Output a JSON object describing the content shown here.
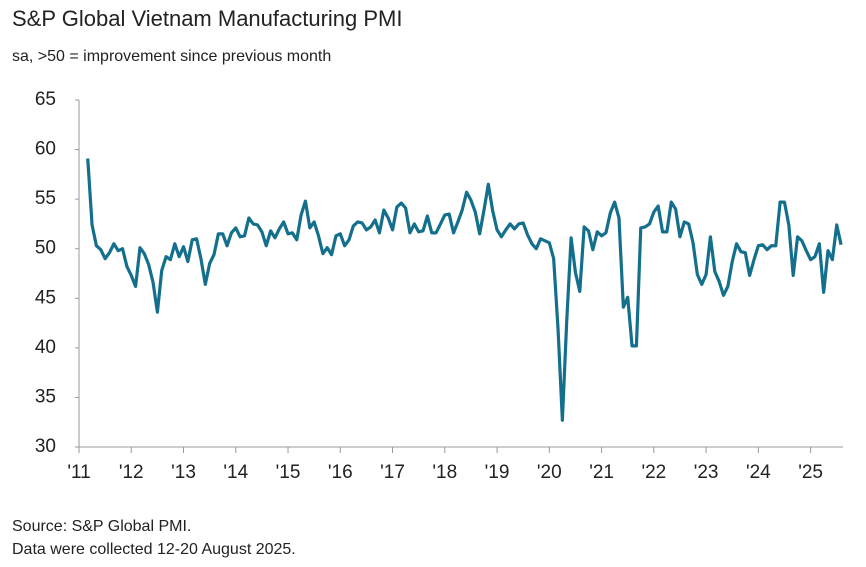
{
  "chart_data": {
    "type": "line",
    "title": "S&P Global Vietnam Manufacturing PMI",
    "subtitle": "sa, >50 = improvement since previous month",
    "source": "Source: S&P Global PMI.",
    "note": "Data were collected 12-20 August 2025.",
    "x": [
      2011.167,
      2011.25,
      2011.333,
      2011.417,
      2011.5,
      2011.583,
      2011.667,
      2011.75,
      2011.833,
      2011.917,
      2012,
      2012.083,
      2012.167,
      2012.25,
      2012.333,
      2012.417,
      2012.5,
      2012.583,
      2012.667,
      2012.75,
      2012.833,
      2012.917,
      2013,
      2013.083,
      2013.167,
      2013.25,
      2013.333,
      2013.417,
      2013.5,
      2013.583,
      2013.667,
      2013.75,
      2013.833,
      2013.917,
      2014,
      2014.083,
      2014.167,
      2014.25,
      2014.333,
      2014.417,
      2014.5,
      2014.583,
      2014.667,
      2014.75,
      2014.833,
      2014.917,
      2015,
      2015.083,
      2015.167,
      2015.25,
      2015.333,
      2015.417,
      2015.5,
      2015.583,
      2015.667,
      2015.75,
      2015.833,
      2015.917,
      2016,
      2016.083,
      2016.167,
      2016.25,
      2016.333,
      2016.417,
      2016.5,
      2016.583,
      2016.667,
      2016.75,
      2016.833,
      2016.917,
      2017,
      2017.083,
      2017.167,
      2017.25,
      2017.333,
      2017.417,
      2017.5,
      2017.583,
      2017.667,
      2017.75,
      2017.833,
      2017.917,
      2018,
      2018.083,
      2018.167,
      2018.25,
      2018.333,
      2018.417,
      2018.5,
      2018.583,
      2018.667,
      2018.75,
      2018.833,
      2018.917,
      2019,
      2019.083,
      2019.167,
      2019.25,
      2019.333,
      2019.417,
      2019.5,
      2019.583,
      2019.667,
      2019.75,
      2019.833,
      2019.917,
      2020,
      2020.083,
      2020.167,
      2020.25,
      2020.333,
      2020.417,
      2020.5,
      2020.583,
      2020.667,
      2020.75,
      2020.833,
      2020.917,
      2021,
      2021.083,
      2021.167,
      2021.25,
      2021.333,
      2021.417,
      2021.5,
      2021.583,
      2021.667,
      2021.75,
      2021.833,
      2021.917,
      2022,
      2022.083,
      2022.167,
      2022.25,
      2022.333,
      2022.417,
      2022.5,
      2022.583,
      2022.667,
      2022.75,
      2022.833,
      2022.917,
      2023,
      2023.083,
      2023.167,
      2023.25,
      2023.333,
      2023.417,
      2023.5,
      2023.583,
      2023.667,
      2023.75,
      2023.833,
      2023.917,
      2024,
      2024.083,
      2024.167,
      2024.25,
      2024.333,
      2024.417,
      2024.5,
      2024.583,
      2024.667,
      2024.75,
      2024.833,
      2024.917,
      2025,
      2025.083,
      2025.167,
      2025.25,
      2025.333,
      2025.417,
      2025.5,
      2025.583
    ],
    "series": [
      {
        "name": "PMI",
        "color": "#146f8c",
        "values": [
          59.1,
          52.4,
          50.3,
          49.9,
          49.0,
          49.6,
          50.5,
          49.8,
          50.0,
          48.2,
          47.3,
          46.2,
          50.1,
          49.5,
          48.4,
          46.6,
          43.6,
          47.8,
          49.2,
          48.9,
          50.5,
          49.2,
          50.2,
          48.7,
          50.9,
          51.0,
          49.0,
          46.4,
          48.5,
          49.4,
          51.5,
          51.5,
          50.3,
          51.6,
          52.1,
          51.2,
          51.3,
          53.1,
          52.5,
          52.4,
          51.7,
          50.3,
          51.8,
          51.1,
          52.0,
          52.7,
          51.5,
          51.6,
          50.9,
          53.4,
          54.8,
          52.1,
          52.7,
          51.3,
          49.5,
          50.1,
          49.4,
          51.3,
          51.5,
          50.3,
          50.9,
          52.3,
          52.7,
          52.6,
          51.9,
          52.2,
          52.9,
          51.6,
          53.9,
          53.1,
          51.9,
          54.2,
          54.6,
          54.1,
          51.6,
          52.5,
          51.7,
          51.8,
          53.3,
          51.6,
          51.6,
          52.5,
          53.4,
          53.5,
          51.6,
          52.7,
          53.9,
          55.7,
          54.9,
          53.7,
          51.5,
          53.9,
          56.5,
          53.8,
          51.9,
          51.2,
          51.9,
          52.5,
          52.0,
          52.5,
          52.6,
          51.4,
          50.5,
          50.0,
          51.0,
          50.8,
          50.6,
          49.0,
          41.9,
          32.7,
          42.7,
          51.1,
          47.6,
          45.7,
          52.2,
          51.8,
          49.9,
          51.7,
          51.3,
          51.6,
          53.6,
          54.7,
          53.1,
          44.1,
          45.1,
          40.2,
          40.2,
          52.1,
          52.2,
          52.5,
          53.7,
          54.3,
          51.7,
          51.7,
          54.7,
          54.0,
          51.2,
          52.7,
          52.5,
          50.6,
          47.4,
          46.4,
          47.4,
          51.2,
          47.7,
          46.7,
          45.3,
          46.2,
          48.7,
          50.5,
          49.7,
          49.6,
          47.3,
          48.9,
          50.3,
          50.4,
          49.9,
          50.3,
          50.3,
          54.7,
          54.7,
          52.4,
          47.3,
          51.2,
          50.8,
          49.8,
          48.9,
          49.2,
          50.5,
          45.6,
          49.8,
          48.9,
          52.4,
          50.4
        ]
      }
    ],
    "xlim": [
      2011,
      2025.62
    ],
    "xticks": [
      {
        "value": 2011,
        "label": "'11"
      },
      {
        "value": 2012,
        "label": "'12"
      },
      {
        "value": 2013,
        "label": "'13"
      },
      {
        "value": 2014,
        "label": "'14"
      },
      {
        "value": 2015,
        "label": "'15"
      },
      {
        "value": 2016,
        "label": "'16"
      },
      {
        "value": 2017,
        "label": "'17"
      },
      {
        "value": 2018,
        "label": "'18"
      },
      {
        "value": 2019,
        "label": "'19"
      },
      {
        "value": 2020,
        "label": "'20"
      },
      {
        "value": 2021,
        "label": "'21"
      },
      {
        "value": 2022,
        "label": "'22"
      },
      {
        "value": 2023,
        "label": "'23"
      },
      {
        "value": 2024,
        "label": "'24"
      },
      {
        "value": 2025,
        "label": "'25"
      }
    ],
    "ylim": [
      30,
      65
    ],
    "yticks": [
      30,
      35,
      40,
      45,
      50,
      55,
      60,
      65
    ],
    "grid": false
  }
}
